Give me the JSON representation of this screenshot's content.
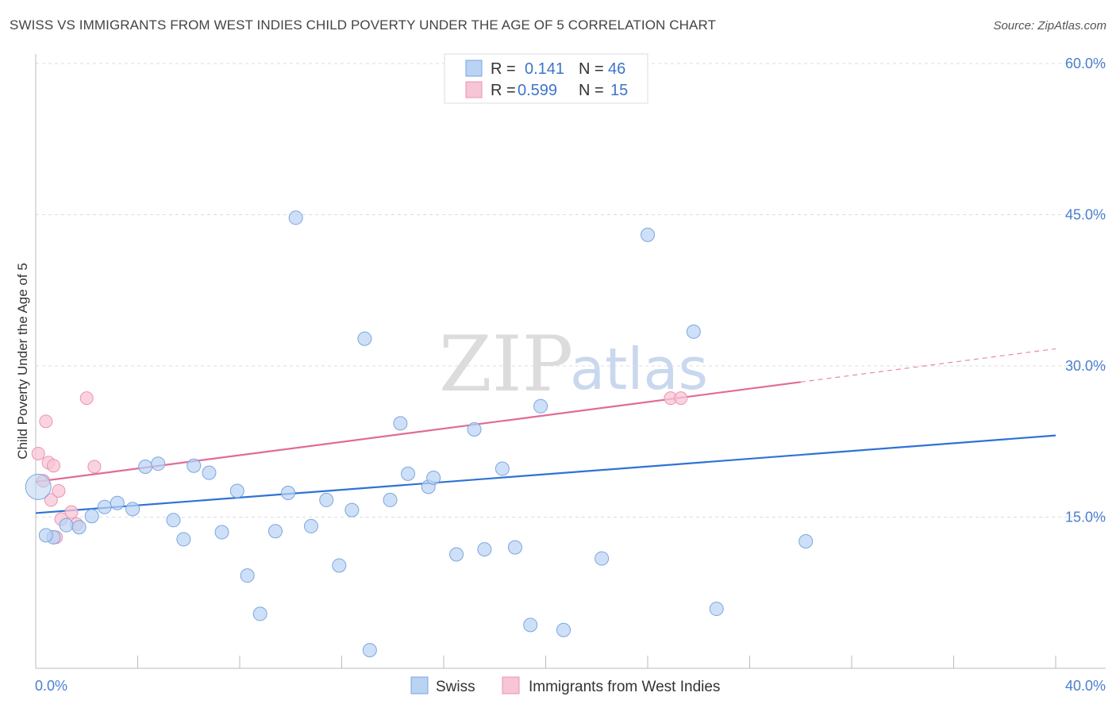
{
  "title": "SWISS VS IMMIGRANTS FROM WEST INDIES CHILD POVERTY UNDER THE AGE OF 5 CORRELATION CHART",
  "source": "Source: ZipAtlas.com",
  "watermark": {
    "zip": "ZIP",
    "atlas": "atlas"
  },
  "colors": {
    "swiss_fill": "#b9d3f3",
    "swiss_stroke": "#7ba6e0",
    "swiss_line": "#2f72d6",
    "wi_fill": "#f7c5d5",
    "wi_stroke": "#eb93b0",
    "wi_line": "#e06b97",
    "tick_text": "#4a7fd0",
    "grid": "#dddddd"
  },
  "legend": {
    "rows": [
      {
        "r_label": "R =",
        "r_value": "0.141",
        "n_label": "N =",
        "n_value": "46"
      },
      {
        "r_label": "R =",
        "r_value": "0.599",
        "n_label": "N =",
        "n_value": "15"
      }
    ]
  },
  "chart_data": {
    "type": "scatter",
    "title": "SWISS VS IMMIGRANTS FROM WEST INDIES CHILD POVERTY UNDER THE AGE OF 5 CORRELATION CHART",
    "xlabel": "",
    "ylabel": "Child Poverty Under the Age of 5",
    "xlim": [
      0,
      40
    ],
    "ylim": [
      0,
      60
    ],
    "x_tick_labels": [
      "0.0%",
      "40.0%"
    ],
    "y_ticks": [
      15,
      30,
      45,
      60
    ],
    "y_tick_labels": [
      "15.0%",
      "30.0%",
      "45.0%",
      "60.0%"
    ],
    "series": [
      {
        "name": "Swiss",
        "R": 0.141,
        "N": 46,
        "trend": {
          "x0": 0,
          "y0": 15.4,
          "x1": 40,
          "y1": 23.1
        },
        "points": [
          [
            0.1,
            18.0
          ],
          [
            0.7,
            13.0
          ],
          [
            1.2,
            14.2
          ],
          [
            1.7,
            14.0
          ],
          [
            2.2,
            15.1
          ],
          [
            2.7,
            16.0
          ],
          [
            3.2,
            16.4
          ],
          [
            3.8,
            15.8
          ],
          [
            4.3,
            20.0
          ],
          [
            4.8,
            20.3
          ],
          [
            5.4,
            14.7
          ],
          [
            5.8,
            12.8
          ],
          [
            6.2,
            20.1
          ],
          [
            6.8,
            19.4
          ],
          [
            7.3,
            13.5
          ],
          [
            7.9,
            17.6
          ],
          [
            8.3,
            9.2
          ],
          [
            8.8,
            5.4
          ],
          [
            9.4,
            13.6
          ],
          [
            9.9,
            17.4
          ],
          [
            10.2,
            44.7
          ],
          [
            10.8,
            14.1
          ],
          [
            11.4,
            16.7
          ],
          [
            11.9,
            10.2
          ],
          [
            12.4,
            15.7
          ],
          [
            12.9,
            32.7
          ],
          [
            13.1,
            1.8
          ],
          [
            13.9,
            16.7
          ],
          [
            14.3,
            24.3
          ],
          [
            14.6,
            19.3
          ],
          [
            15.4,
            18.0
          ],
          [
            15.6,
            18.9
          ],
          [
            16.5,
            11.3
          ],
          [
            17.2,
            23.7
          ],
          [
            17.6,
            11.8
          ],
          [
            18.3,
            19.8
          ],
          [
            18.8,
            12.0
          ],
          [
            19.4,
            4.3
          ],
          [
            19.8,
            26.0
          ],
          [
            20.7,
            3.8
          ],
          [
            22.2,
            10.9
          ],
          [
            24.0,
            43.0
          ],
          [
            25.8,
            33.4
          ],
          [
            26.7,
            5.9
          ],
          [
            30.2,
            12.6
          ],
          [
            0.4,
            13.2
          ]
        ]
      },
      {
        "name": "Immigrants from West Indies",
        "R": 0.599,
        "N": 15,
        "trend": {
          "x0": 0,
          "y0": 18.5,
          "x1": 30,
          "y1": 28.4,
          "dash_to_x": 40,
          "dash_to_y": 31.7
        },
        "points": [
          [
            0.1,
            21.3
          ],
          [
            0.3,
            18.6
          ],
          [
            0.4,
            24.5
          ],
          [
            0.5,
            20.4
          ],
          [
            0.6,
            16.7
          ],
          [
            0.7,
            20.1
          ],
          [
            0.8,
            13.0
          ],
          [
            0.9,
            17.6
          ],
          [
            1.0,
            14.8
          ],
          [
            1.4,
            15.5
          ],
          [
            1.6,
            14.3
          ],
          [
            2.0,
            26.8
          ],
          [
            2.3,
            20.0
          ],
          [
            24.9,
            26.8
          ],
          [
            25.3,
            26.8
          ]
        ]
      }
    ]
  },
  "bottom_legend": {
    "swiss": "Swiss",
    "west_indies": "Immigrants from West Indies"
  }
}
